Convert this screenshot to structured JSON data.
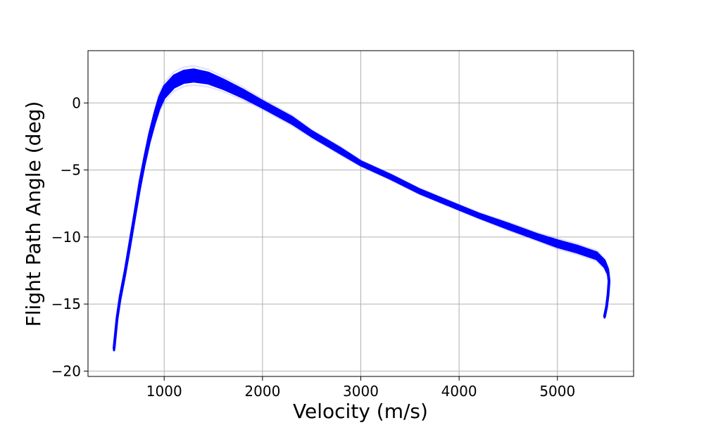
{
  "chart_data": {
    "type": "line",
    "title": "",
    "xlabel": "Velocity (m/s)",
    "ylabel": "Flight Path Angle (deg)",
    "xlim": [
      225,
      5775
    ],
    "ylim": [
      -20.4,
      3.9
    ],
    "xticks": [
      1000,
      2000,
      3000,
      4000,
      5000
    ],
    "yticks": [
      0,
      -5,
      -10,
      -15,
      -20
    ],
    "xtick_labels": [
      "1000",
      "2000",
      "3000",
      "4000",
      "5000"
    ],
    "ytick_labels": [
      "0",
      "−5",
      "−10",
      "−15",
      "−20"
    ],
    "grid": true,
    "legend": "none",
    "series_description": "Monte Carlo ensemble of trajectories drawn as overlapping semi-transparent lines forming a band",
    "series": [
      {
        "color": "#0000ff",
        "x": [
          5480,
          5500,
          5515,
          5525,
          5515,
          5480,
          5400,
          5200,
          5000,
          4800,
          4500,
          4200,
          4000,
          3600,
          3300,
          3000,
          2800,
          2500,
          2300,
          2000,
          1800,
          1600,
          1450,
          1300,
          1200,
          1100,
          1000,
          950,
          900,
          850,
          800,
          750,
          700,
          650,
          600,
          550,
          520,
          490
        ],
        "y": [
          -15.9,
          -15.2,
          -14.3,
          -13.3,
          -12.6,
          -12.0,
          -11.4,
          -10.9,
          -10.5,
          -10.0,
          -9.2,
          -8.4,
          -7.8,
          -6.6,
          -5.5,
          -4.5,
          -3.6,
          -2.3,
          -1.3,
          -0.1,
          0.7,
          1.4,
          1.85,
          2.05,
          1.95,
          1.6,
          0.8,
          0.0,
          -1.2,
          -2.6,
          -4.3,
          -6.2,
          -8.4,
          -10.6,
          -12.7,
          -14.6,
          -16.1,
          -18.3
        ],
        "band_halfwidth": [
          0.1,
          0.1,
          0.1,
          0.15,
          0.2,
          0.25,
          0.25,
          0.25,
          0.25,
          0.2,
          0.2,
          0.15,
          0.15,
          0.15,
          0.15,
          0.15,
          0.2,
          0.2,
          0.25,
          0.25,
          0.3,
          0.35,
          0.4,
          0.45,
          0.45,
          0.45,
          0.45,
          0.45,
          0.4,
          0.35,
          0.3,
          0.3,
          0.25,
          0.25,
          0.2,
          0.2,
          0.15,
          0.15
        ]
      }
    ]
  }
}
